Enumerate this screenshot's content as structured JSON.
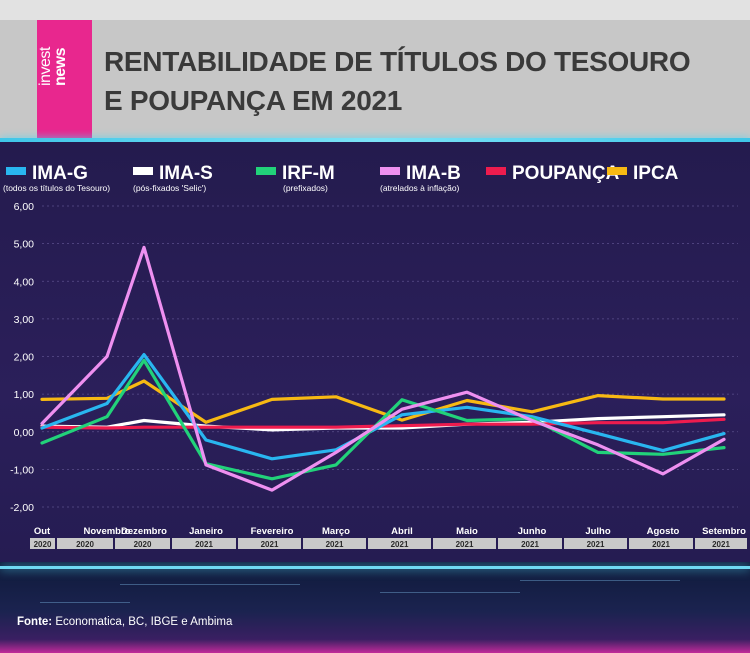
{
  "header": {
    "logo_top": "invest",
    "logo_bottom": "news",
    "title_line1": "RENTABILIDADE DE TÍTULOS DO TESOURO",
    "title_line2": "E POUPANÇA EM 2021"
  },
  "source": {
    "label": "Fonte:",
    "text": "Economatica, BC, IBGE e Ambima"
  },
  "chart_data": {
    "type": "line",
    "title": "RENTABILIDADE DE TÍTULOS DO TESOURO E POUPANÇA EM 2021",
    "xlabel": "",
    "ylabel": "",
    "ylim": [
      -2,
      6
    ],
    "yticks": [
      "6,00",
      "5,00",
      "4,00",
      "3,00",
      "2,00",
      "1,00",
      "0,00",
      "-1,00",
      "-2,00"
    ],
    "ytick_values": [
      6,
      5,
      4,
      3,
      2,
      1,
      0,
      -1,
      -2
    ],
    "grid": true,
    "legend_position": "top",
    "categories": [
      "Out",
      "Novembro",
      "Dezembro",
      "Janeiro",
      "Fevereiro",
      "Março",
      "Abril",
      "Maio",
      "Junho",
      "Julho",
      "Agosto",
      "Setembro"
    ],
    "years": [
      "2020",
      "2020",
      "2020",
      "2021",
      "2021",
      "2021",
      "2021",
      "2021",
      "2021",
      "2021",
      "2021",
      "2021"
    ],
    "series": [
      {
        "name": "IMA-G",
        "sub": "(todos os títulos do Tesouro)",
        "color": "#29b6f0",
        "values": [
          0.1,
          0.75,
          2.05,
          -0.22,
          -0.72,
          -0.48,
          0.45,
          0.65,
          0.4,
          -0.05,
          -0.5,
          -0.05
        ]
      },
      {
        "name": "IMA-S",
        "sub": "(pós-fixados 'Selic')",
        "color": "#ffffff",
        "values": [
          0.15,
          0.12,
          0.3,
          0.15,
          0.05,
          0.1,
          0.1,
          0.2,
          0.25,
          0.35,
          0.4,
          0.45
        ]
      },
      {
        "name": "IRF-M",
        "sub": "(prefixados)",
        "color": "#22d27a",
        "values": [
          -0.3,
          0.4,
          1.9,
          -0.85,
          -1.25,
          -0.88,
          0.85,
          0.3,
          0.35,
          -0.55,
          -0.6,
          -0.42
        ]
      },
      {
        "name": "IMA-B",
        "sub": "(atrelados à inflação)",
        "color": "#ee90f0",
        "values": [
          0.22,
          2.0,
          4.9,
          -0.88,
          -1.55,
          -0.55,
          0.6,
          1.05,
          0.3,
          -0.35,
          -1.12,
          -0.2
        ]
      },
      {
        "name": "POUPANÇA",
        "sub": "",
        "color": "#ee1c4e",
        "values": [
          0.12,
          0.1,
          0.12,
          0.12,
          0.12,
          0.12,
          0.16,
          0.2,
          0.2,
          0.24,
          0.24,
          0.33
        ]
      },
      {
        "name": "IPCA",
        "sub": "",
        "color": "#f7b913",
        "values": [
          0.86,
          0.89,
          1.35,
          0.25,
          0.86,
          0.93,
          0.31,
          0.83,
          0.53,
          0.96,
          0.87,
          0.87
        ]
      }
    ]
  }
}
